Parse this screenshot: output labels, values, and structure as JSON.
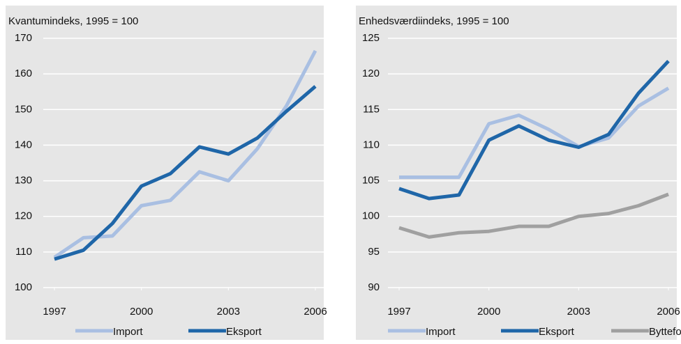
{
  "chart_data": [
    {
      "type": "line",
      "title": "Kvantumindeks, 1995 = 100",
      "x": [
        1997,
        1998,
        1999,
        2000,
        2001,
        2002,
        2003,
        2004,
        2005,
        2006
      ],
      "xlim": [
        1997,
        2006
      ],
      "xticks": [
        1997,
        2000,
        2003,
        2006
      ],
      "ylim": [
        100,
        170
      ],
      "yticks": [
        100,
        110,
        120,
        130,
        140,
        150,
        160,
        170
      ],
      "grid": true,
      "series": [
        {
          "name": "Import",
          "color": "#a9bfe2",
          "values": [
            108.5,
            114,
            114.5,
            123,
            124.5,
            132.5,
            130,
            139,
            151,
            166.5
          ]
        },
        {
          "name": "Eksport",
          "color": "#1f66a8",
          "values": [
            108,
            110.5,
            118,
            128.5,
            132,
            139.5,
            137.5,
            142,
            149.5,
            156.5
          ]
        }
      ]
    },
    {
      "type": "line",
      "title": "Enhedsværdiindeks, 1995 = 100",
      "x": [
        1997,
        1998,
        1999,
        2000,
        2001,
        2002,
        2003,
        2004,
        2005,
        2006
      ],
      "xlim": [
        1997,
        2006
      ],
      "xticks": [
        1997,
        2000,
        2003,
        2006
      ],
      "ylim": [
        90,
        125
      ],
      "yticks": [
        90,
        95,
        100,
        105,
        110,
        115,
        120,
        125
      ],
      "grid": true,
      "series": [
        {
          "name": "Import",
          "color": "#a9bfe2",
          "values": [
            105.5,
            105.5,
            105.5,
            113,
            114.2,
            112.2,
            109.8,
            111,
            115.5,
            118
          ]
        },
        {
          "name": "Eksport",
          "color": "#1f66a8",
          "values": [
            103.9,
            102.5,
            103,
            110.7,
            112.7,
            110.7,
            109.7,
            111.5,
            117.3,
            121.8
          ]
        },
        {
          "name": "Bytteforhold",
          "color": "#a0a0a0",
          "values": [
            98.4,
            97.1,
            97.7,
            97.9,
            98.6,
            98.6,
            100,
            100.4,
            101.5,
            103.1
          ]
        }
      ]
    }
  ]
}
